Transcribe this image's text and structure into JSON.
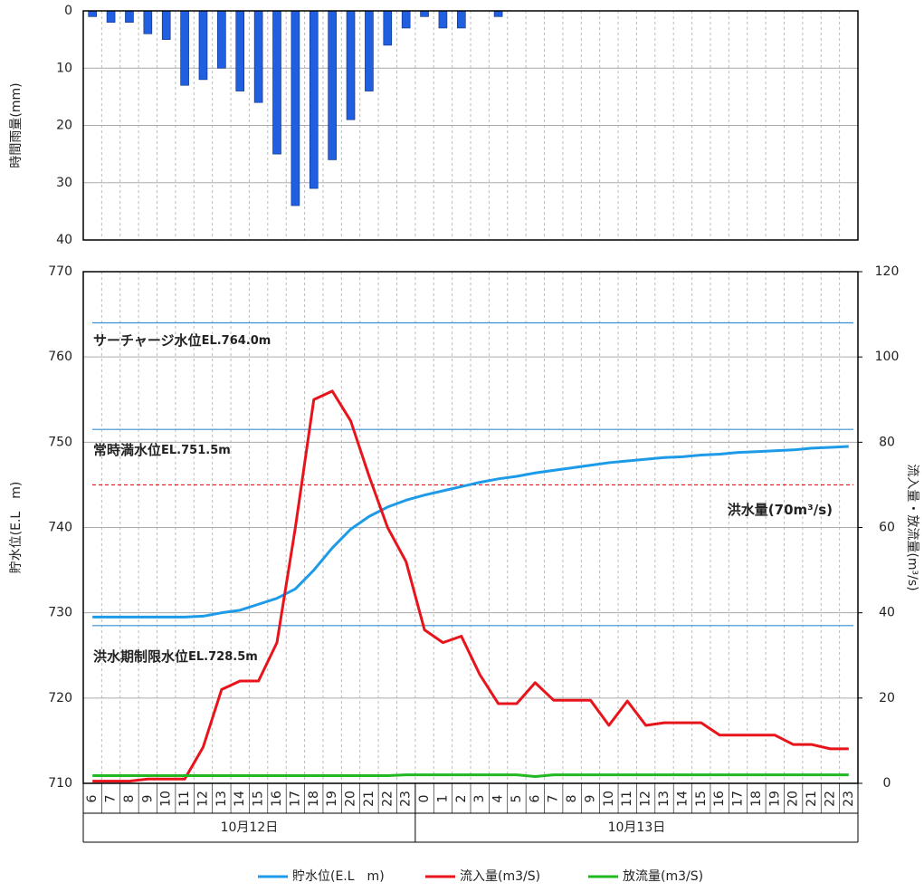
{
  "chart_data": [
    {
      "type": "bar",
      "ylabel": "時間雨量(mm)",
      "inverted": true,
      "color": "#1f5fe0",
      "values": [
        1,
        2,
        2,
        4,
        5,
        13,
        12,
        10,
        14,
        16,
        25,
        34,
        31,
        26,
        19,
        14,
        6,
        3,
        1,
        3,
        3,
        0,
        1,
        0,
        0,
        0,
        0,
        0,
        0,
        0,
        0,
        0,
        0,
        0,
        0,
        0,
        0,
        0,
        0,
        0,
        0,
        0
      ],
      "ylim": [
        0,
        40
      ],
      "yticks": [
        0,
        10,
        20,
        30,
        40
      ],
      "grid": true
    },
    {
      "type": "line",
      "ylabel": "貯水位(E.L　m)",
      "y2label": "流入量・放流量(m³/s)",
      "categories": [
        "6",
        "7",
        "8",
        "9",
        "10",
        "11",
        "12",
        "13",
        "14",
        "15",
        "16",
        "17",
        "18",
        "19",
        "20",
        "21",
        "22",
        "23",
        "0",
        "1",
        "2",
        "3",
        "4",
        "5",
        "6",
        "7",
        "8",
        "9",
        "10",
        "11",
        "12",
        "13",
        "14",
        "15",
        "16",
        "17",
        "18",
        "19",
        "20",
        "21",
        "22",
        "23"
      ],
      "x_groups": [
        "10月12日",
        "10月13日"
      ],
      "series": [
        {
          "name": "貯水位(E.L　m)",
          "color": "#1e9be8",
          "axis": "y",
          "values": [
            729.5,
            729.5,
            729.5,
            729.5,
            729.5,
            729.5,
            729.6,
            730,
            730.3,
            731,
            731.7,
            732.8,
            735,
            737.6,
            739.8,
            741.3,
            742.4,
            743.2,
            743.8,
            744.3,
            744.8,
            745.3,
            745.7,
            746,
            746.4,
            746.7,
            747,
            747.3,
            747.6,
            747.8,
            748,
            748.2,
            748.3,
            748.5,
            748.6,
            748.8,
            748.9,
            749,
            749.1,
            749.3,
            749.4,
            749.5
          ]
        },
        {
          "name": "流入量(m3/S)",
          "color": "#e8141b",
          "axis": "y2",
          "values": [
            0.5,
            0.5,
            0.5,
            1,
            1,
            1,
            8.5,
            22,
            24,
            24,
            33,
            60,
            90,
            92,
            85,
            72,
            60,
            52,
            36,
            33,
            34.5,
            25.5,
            18.7,
            18.7,
            23.6,
            19.5,
            19.5,
            19.5,
            13.6,
            19.3,
            13.6,
            14.2,
            14.2,
            14.2,
            11.3,
            11.3,
            11.3,
            11.3,
            9.1,
            9.1,
            8.1,
            8.1
          ]
        },
        {
          "name": "放流量(m3/S)",
          "color": "#22b822",
          "axis": "y2",
          "values": [
            1.8,
            1.8,
            1.8,
            1.8,
            1.8,
            1.8,
            1.8,
            1.8,
            1.8,
            1.8,
            1.8,
            1.8,
            1.8,
            1.8,
            1.8,
            1.8,
            1.8,
            2,
            2,
            2,
            2,
            2,
            2,
            2,
            1.6,
            2,
            2,
            2,
            2,
            2,
            2,
            2,
            2,
            2,
            2,
            2,
            2,
            2,
            2,
            2,
            2,
            2
          ]
        }
      ],
      "reference_lines": [
        {
          "name": "サーチャージ水位",
          "label": "EL.764.0m",
          "value": 764.0,
          "axis": "y",
          "color": "#3a8fd0"
        },
        {
          "name": "常時満水位",
          "label": "EL.751.5m",
          "value": 751.5,
          "axis": "y",
          "color": "#3a8fd0"
        },
        {
          "name": "洪水期制限水位",
          "label": "EL.728.5m",
          "value": 728.5,
          "axis": "y",
          "color": "#3a8fd0"
        },
        {
          "name": "洪水量(70m³/s)",
          "value": 70,
          "axis": "y2",
          "color": "#e8141b",
          "dashed": true
        }
      ],
      "ylim": [
        710,
        770
      ],
      "yticks": [
        710,
        720,
        730,
        740,
        750,
        760,
        770
      ],
      "y2lim": [
        0,
        120
      ],
      "y2ticks": [
        0,
        20,
        40,
        60,
        80,
        100,
        120
      ],
      "grid": true,
      "legend": "bottom"
    }
  ]
}
